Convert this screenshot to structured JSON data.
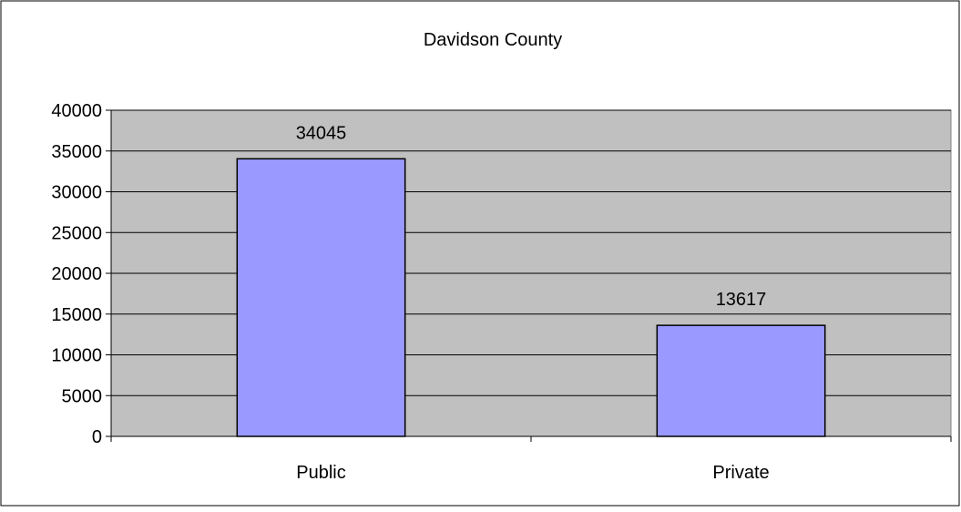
{
  "chart_data": {
    "type": "bar",
    "title": "Davidson County",
    "categories": [
      "Public",
      "Private"
    ],
    "values": [
      34045,
      13617
    ],
    "data_labels": [
      "34045",
      "13617"
    ],
    "xlabel": "",
    "ylabel": "",
    "ylim": [
      0,
      40000
    ],
    "yticks": [
      0,
      5000,
      10000,
      15000,
      20000,
      25000,
      30000,
      35000,
      40000
    ],
    "ytick_labels": [
      "0",
      "5000",
      "10000",
      "15000",
      "20000",
      "25000",
      "30000",
      "35000",
      "40000"
    ],
    "grid": true,
    "legend": "none"
  },
  "colors": {
    "bar_fill": "#9999ff",
    "plot_area": "#c0c0c0",
    "gridline": "#000000",
    "background": "#ffffff"
  }
}
